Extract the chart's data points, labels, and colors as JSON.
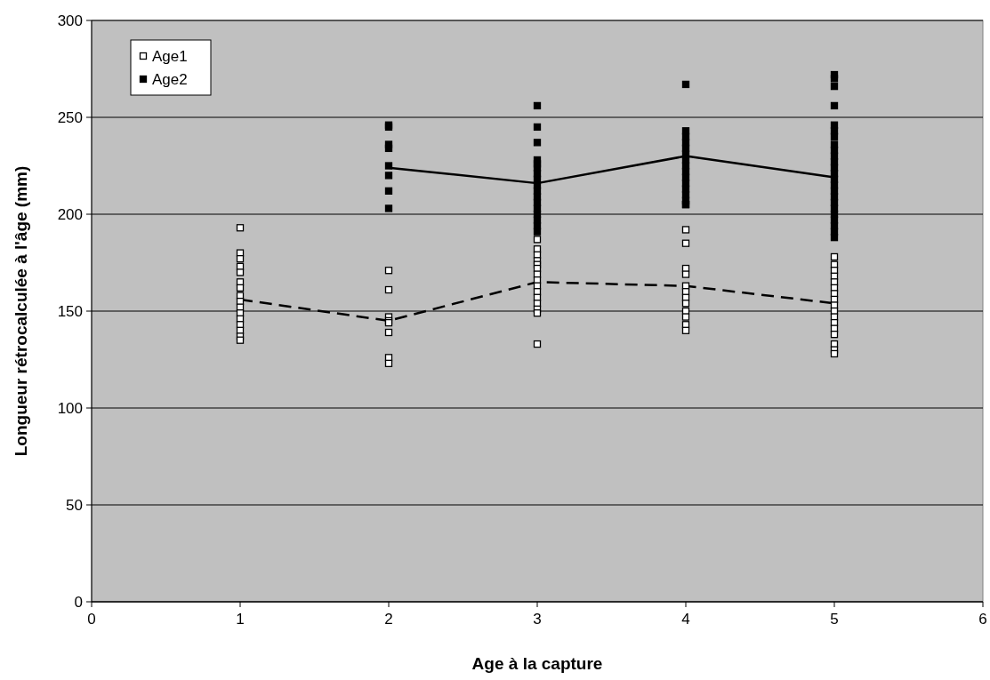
{
  "chart_data": {
    "type": "scatter",
    "xlabel": "Age à la capture",
    "ylabel": "Longueur rétrocalculée à l'âge (mm)",
    "xlim": [
      0,
      6
    ],
    "xticks": [
      0,
      1,
      2,
      3,
      4,
      5,
      6
    ],
    "ylim": [
      0,
      300
    ],
    "yticks": [
      0,
      50,
      100,
      150,
      200,
      250,
      300
    ],
    "grid": "y",
    "legend": "top left",
    "series": [
      {
        "name": "Age1",
        "color": "#ffffff",
        "marker": "square",
        "x": [
          1,
          1,
          1,
          1,
          1,
          1,
          1,
          1,
          1,
          1,
          1,
          1,
          1,
          1,
          1,
          1,
          2,
          2,
          2,
          2,
          2,
          2,
          2,
          2,
          3,
          3,
          3,
          3,
          3,
          3,
          3,
          3,
          3,
          3,
          3,
          3,
          3,
          3,
          3,
          4,
          4,
          4,
          4,
          4,
          4,
          4,
          4,
          4,
          4,
          4,
          4,
          4,
          5,
          5,
          5,
          5,
          5,
          5,
          5,
          5,
          5,
          5,
          5,
          5,
          5,
          5,
          5,
          5,
          5
        ],
        "values": [
          193,
          180,
          177,
          173,
          170,
          165,
          162,
          158,
          155,
          152,
          149,
          146,
          143,
          140,
          137,
          135,
          171,
          161,
          147,
          145,
          144,
          139,
          126,
          123,
          187,
          182,
          179,
          176,
          174,
          172,
          169,
          166,
          163,
          160,
          157,
          154,
          151,
          149,
          133,
          205,
          192,
          185,
          172,
          169,
          163,
          160,
          157,
          154,
          150,
          147,
          143,
          140,
          178,
          174,
          171,
          168,
          165,
          162,
          159,
          156,
          153,
          150,
          147,
          144,
          141,
          138,
          133,
          130,
          128
        ]
      },
      {
        "name": "Age2",
        "color": "#000000",
        "marker": "square",
        "x": [
          2,
          2,
          2,
          2,
          2,
          2,
          2,
          2,
          3,
          3,
          3,
          3,
          3,
          3,
          3,
          3,
          3,
          3,
          3,
          3,
          3,
          3,
          3,
          3,
          3,
          4,
          4,
          4,
          4,
          4,
          4,
          4,
          4,
          4,
          4,
          4,
          4,
          4,
          4,
          4,
          5,
          5,
          5,
          5,
          5,
          5,
          5,
          5,
          5,
          5,
          5,
          5,
          5,
          5,
          5,
          5,
          5,
          5,
          5,
          5,
          5,
          5,
          5,
          5
        ],
        "values": [
          246,
          245,
          236,
          234,
          225,
          220,
          212,
          203,
          256,
          245,
          237,
          228,
          226,
          224,
          221,
          218,
          215,
          212,
          209,
          206,
          203,
          200,
          197,
          194,
          191,
          267,
          243,
          240,
          237,
          234,
          231,
          228,
          225,
          222,
          219,
          216,
          213,
          210,
          207,
          205,
          272,
          270,
          266,
          256,
          246,
          243,
          240,
          236,
          233,
          230,
          227,
          224,
          221,
          218,
          215,
          212,
          209,
          206,
          203,
          200,
          197,
          194,
          191,
          188
        ]
      },
      {
        "type": "line",
        "marker": "none",
        "color": "#000000",
        "line_style": "dashed",
        "x": [
          1,
          2,
          3,
          4,
          5
        ],
        "values": [
          156,
          145,
          165,
          163,
          154
        ]
      },
      {
        "type": "line",
        "marker": "none",
        "color": "#000000",
        "line_style": "solid",
        "x": [
          2,
          3,
          4,
          5
        ],
        "values": [
          224,
          216,
          230,
          219
        ]
      }
    ]
  }
}
